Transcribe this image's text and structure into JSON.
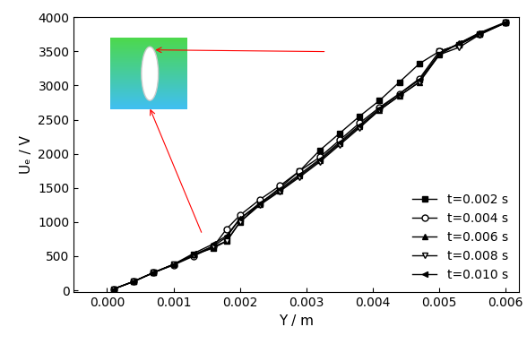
{
  "chart_data": {
    "type": "line",
    "x_label": "Y / m",
    "y_label": "Uₑ / V",
    "x": [
      0.0001,
      0.0004,
      0.0007,
      0.001,
      0.0013,
      0.0016,
      0.0018,
      0.002,
      0.0023,
      0.0026,
      0.0029,
      0.0032,
      0.0035,
      0.0038,
      0.0041,
      0.0044,
      0.0047,
      0.005,
      0.0053,
      0.0056,
      0.006
    ],
    "series": [
      {
        "name": "t=0.002 s",
        "color": "#000000",
        "marker": "square",
        "values": [
          20,
          130,
          260,
          380,
          520,
          620,
          720,
          1000,
          1270,
          1500,
          1750,
          2050,
          2300,
          2550,
          2780,
          3050,
          3320,
          3500,
          3600,
          3750,
          3920
        ]
      },
      {
        "name": "t=0.004 s",
        "color": "#000000",
        "marker": "open_circle",
        "values": [
          20,
          130,
          260,
          370,
          500,
          640,
          900,
          1100,
          1330,
          1530,
          1750,
          1950,
          2200,
          2450,
          2680,
          2880,
          3100,
          3500,
          3600,
          3750,
          3920
        ]
      },
      {
        "name": "t=0.006 s",
        "color": "#000000",
        "marker": "triangle_up",
        "values": [
          20,
          130,
          260,
          380,
          520,
          650,
          780,
          1050,
          1260,
          1460,
          1680,
          1900,
          2150,
          2400,
          2640,
          2850,
          3050,
          3450,
          3620,
          3760,
          3920
        ]
      },
      {
        "name": "t=0.008 s",
        "color": "#000000",
        "marker": "open_triangle_down",
        "values": [
          20,
          130,
          260,
          380,
          510,
          640,
          720,
          1000,
          1250,
          1450,
          1660,
          1880,
          2130,
          2380,
          2640,
          2850,
          3050,
          3450,
          3560,
          3740,
          3920
        ]
      },
      {
        "name": "t=0.010 s",
        "color": "#000000",
        "marker": "triangle_left",
        "values": [
          20,
          130,
          260,
          380,
          540,
          680,
          800,
          1050,
          1280,
          1480,
          1700,
          1920,
          2170,
          2420,
          2660,
          2880,
          3080,
          3470,
          3620,
          3770,
          3930
        ]
      }
    ],
    "xlim": [
      -0.0005,
      0.0062
    ],
    "xticks": [
      {
        "value": 0,
        "label": "0.000"
      },
      0.001,
      0.002,
      0.003,
      0.004,
      0.005,
      0.006
    ],
    "ylim": [
      -30,
      4000
    ],
    "yticks": [
      0,
      500,
      1000,
      1500,
      2000,
      2500,
      3000,
      3500,
      4000
    ],
    "legend": "lower right",
    "grid": false
  }
}
